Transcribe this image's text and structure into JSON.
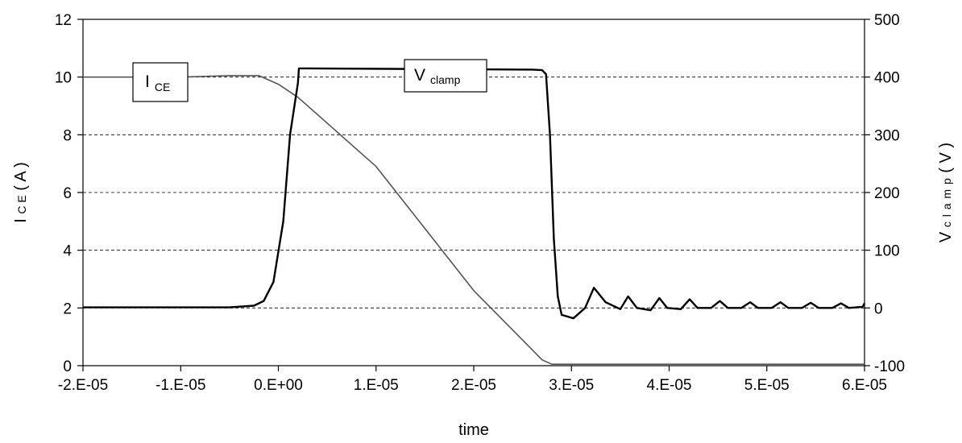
{
  "chart_data": {
    "type": "line",
    "xlabel": "time",
    "ylabel_left": {
      "main": "I",
      "sub": "C E",
      "unit": "( A )"
    },
    "ylabel_right": {
      "main": "V",
      "sub": "c l a m p",
      "unit": "( V )"
    },
    "xlim": [
      -2e-05,
      6e-05
    ],
    "ylim_left": [
      0,
      12
    ],
    "ylim_right": [
      -100,
      500
    ],
    "grid": "horizontal-dashed",
    "x_ticks": [
      {
        "value": -2e-05,
        "label": "-2.E-05"
      },
      {
        "value": -1e-05,
        "label": "-1.E-05"
      },
      {
        "value": 0,
        "label": "0.E+00"
      },
      {
        "value": 1e-05,
        "label": "1.E-05"
      },
      {
        "value": 2e-05,
        "label": "2.E-05"
      },
      {
        "value": 3e-05,
        "label": "3.E-05"
      },
      {
        "value": 4e-05,
        "label": "4.E-05"
      },
      {
        "value": 5e-05,
        "label": "5.E-05"
      },
      {
        "value": 6e-05,
        "label": "6.E-05"
      }
    ],
    "y_left_ticks": [
      {
        "value": 0,
        "label": "0"
      },
      {
        "value": 2,
        "label": "2"
      },
      {
        "value": 4,
        "label": "4"
      },
      {
        "value": 6,
        "label": "6"
      },
      {
        "value": 8,
        "label": "8"
      },
      {
        "value": 10,
        "label": "10"
      },
      {
        "value": 12,
        "label": "12"
      }
    ],
    "y_right_ticks": [
      {
        "value": -100,
        "label": "-100"
      },
      {
        "value": 0,
        "label": "0"
      },
      {
        "value": 100,
        "label": "100"
      },
      {
        "value": 200,
        "label": "200"
      },
      {
        "value": 300,
        "label": "300"
      },
      {
        "value": 400,
        "label": "400"
      },
      {
        "value": 500,
        "label": "500"
      }
    ],
    "series": [
      {
        "name": "I CE",
        "axis": "left",
        "color": "#555555",
        "x": [
          -2e-05,
          -1e-05,
          -5e-06,
          -2e-06,
          0,
          2e-06,
          1e-05,
          2e-05,
          2.7e-05,
          2.8e-05,
          3e-05,
          4e-05,
          5e-05,
          6e-05
        ],
        "y": [
          10.0,
          10.0,
          10.05,
          10.05,
          9.75,
          9.3,
          6.9,
          2.6,
          0.2,
          0.05,
          0.05,
          0.05,
          0.05,
          0.05
        ]
      },
      {
        "name": "V clamp",
        "axis": "right",
        "color": "#000000",
        "x": [
          -2e-05,
          -5e-06,
          -2.5e-06,
          -1.5e-06,
          -5e-07,
          5e-07,
          1.2e-06,
          2e-06,
          2.1e-06,
          2.6e-05,
          2.7e-05,
          2.74e-05,
          2.78e-05,
          2.82e-05,
          2.86e-05,
          2.9e-05,
          3.02e-05,
          3.14e-05,
          3.23e-05,
          3.35e-05,
          3.5e-05,
          3.58e-05,
          3.67e-05,
          3.81e-05,
          3.9e-05,
          3.98e-05,
          4.12e-05,
          4.21e-05,
          4.29e-05,
          4.43e-05,
          4.52e-05,
          4.6e-05,
          4.74e-05,
          4.83e-05,
          4.91e-05,
          5.05e-05,
          5.14e-05,
          5.22e-05,
          5.36e-05,
          5.45e-05,
          5.53e-05,
          5.67e-05,
          5.76e-05,
          5.84e-05,
          5.98e-05,
          6e-05
        ],
        "y": [
          1,
          1,
          4,
          12,
          45,
          150,
          300,
          390,
          415,
          413,
          412,
          405,
          300,
          120,
          20,
          -12,
          -18,
          0,
          35,
          10,
          -2,
          20,
          0,
          -4,
          17,
          0,
          -2,
          15,
          0,
          0,
          12,
          0,
          0,
          10,
          0,
          0,
          10,
          0,
          0,
          9,
          0,
          0,
          8,
          0,
          2,
          8
        ]
      }
    ],
    "annotations": [
      {
        "main": "I",
        "sub": "CE"
      },
      {
        "main": "V",
        "sub": "clamp"
      }
    ]
  }
}
